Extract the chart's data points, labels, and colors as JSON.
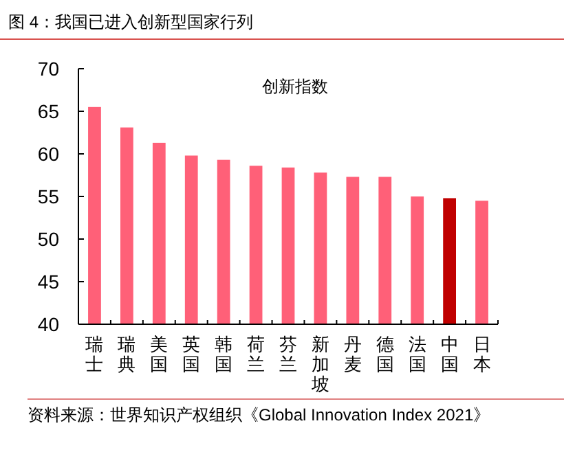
{
  "chart_data": {
    "type": "bar",
    "title": "图 4：我国已进入创新型国家行列",
    "subtitle": "创新指数",
    "categories": [
      "瑞士",
      "瑞典",
      "美国",
      "英国",
      "韩国",
      "荷兰",
      "芬兰",
      "新加坡",
      "丹麦",
      "德国",
      "法国",
      "中国",
      "日本"
    ],
    "values": [
      65.5,
      63.1,
      61.3,
      59.8,
      59.3,
      58.6,
      58.4,
      57.8,
      57.3,
      57.3,
      55.0,
      54.8,
      54.5
    ],
    "colors": [
      "#ff6078",
      "#ff6078",
      "#ff6078",
      "#ff6078",
      "#ff6078",
      "#ff6078",
      "#ff6078",
      "#ff6078",
      "#ff6078",
      "#ff6078",
      "#ff6078",
      "#c00000",
      "#ff6078"
    ],
    "ylim": [
      40,
      70
    ],
    "yticks": [
      40,
      45,
      50,
      55,
      60,
      65,
      70
    ],
    "grid": false,
    "annotations": [
      "资料来源：世界知识产权组织《Global Innovation Index 2021》"
    ]
  }
}
